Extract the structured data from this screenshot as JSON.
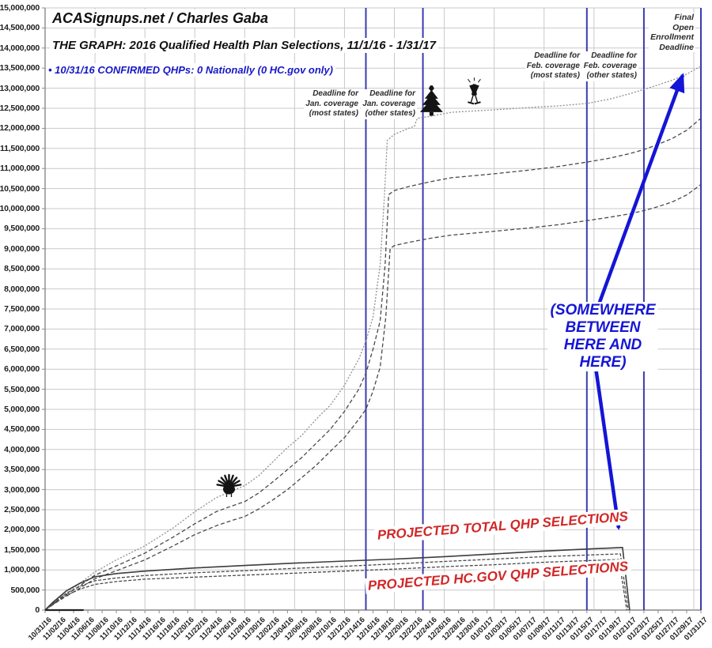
{
  "header": {
    "site": "ACASignups.net / Charles Gaba",
    "title": "THE GRAPH: 2016 Qualified Health Plan Selections, 11/1/16 - 1/31/17",
    "note": "• 10/31/16 CONFIRMED QHPs: 0 Nationally (0 HC.gov only)"
  },
  "annotations": {
    "deadline_jan_most": "Deadline for\nJan. coverage\n(most states)",
    "deadline_jan_other": "Deadline for\nJan. coverage\n(other states)",
    "deadline_feb_most": "Deadline for\nFeb. coverage\n(most states)",
    "deadline_feb_other": "Deadline for\nFeb. coverage\n(other states)",
    "final_deadline": "Final\nOpen\nEnrollment\nDeadline",
    "somewhere": "(SOMEWHERE BETWEEN\nHERE AND HERE)",
    "projected_total": "PROJECTED TOTAL QHP SELECTIONS",
    "projected_hcgov": "PROJECTED HC.GOV QHP SELECTIONS"
  },
  "colors": {
    "deadline_line_blue": "#3b3bb0",
    "annotation_blue": "#1515d6",
    "annotation_red": "#d22727",
    "grid_gray": "#c9c9c9",
    "axis_gray": "#8a8a8a",
    "curve_dark": "#4a4a4a",
    "curve_light": "#8f8f8f"
  },
  "icons": [
    {
      "name": "thanksgiving-turkey-icon",
      "day": 25.8,
      "value_m": 3.15
    },
    {
      "name": "christmas-tree-icon",
      "day": 54.2,
      "value_m": 12.62
    },
    {
      "name": "new-years-toast-icon",
      "day": 60.2,
      "value_m": 12.85
    }
  ],
  "chart_data": {
    "type": "line",
    "title": "THE GRAPH: 2016 Qualified Health Plan Selections, 11/1/16 - 1/31/17",
    "xlabel": "",
    "ylabel": "",
    "grid": true,
    "x_axis": {
      "start_date": "10/31/16",
      "end_date": "01/31/17",
      "days_span": 92,
      "tick_every_days": 2,
      "tick_labels": [
        "10/31/16",
        "11/02/16",
        "11/04/16",
        "11/06/16",
        "11/08/16",
        "11/10/16",
        "11/12/16",
        "11/14/16",
        "11/16/16",
        "11/18/16",
        "11/20/16",
        "11/22/16",
        "11/24/16",
        "11/26/16",
        "11/28/16",
        "11/30/16",
        "12/02/16",
        "12/04/16",
        "12/06/16",
        "12/08/16",
        "12/10/16",
        "12/12/16",
        "12/14/16",
        "12/16/16",
        "12/18/16",
        "12/20/16",
        "12/22/16",
        "12/24/16",
        "12/26/16",
        "12/28/16",
        "12/30/16",
        "01/01/17",
        "01/03/17",
        "01/05/17",
        "01/07/17",
        "01/09/17",
        "01/11/17",
        "01/13/17",
        "01/15/17",
        "01/17/17",
        "01/19/17",
        "01/21/17",
        "01/23/17",
        "01/25/17",
        "01/27/17",
        "01/29/17",
        "01/31/17"
      ],
      "weekly_gridline_days": [
        0,
        7,
        14,
        21,
        28,
        35,
        42,
        49,
        56,
        63,
        70,
        77,
        84,
        91
      ]
    },
    "y_axis": {
      "min": 0,
      "max": 15000000,
      "step": 500000,
      "tick_labels": [
        "0",
        "500,000",
        "1,000,000",
        "1,500,000",
        "2,000,000",
        "2,500,000",
        "3,000,000",
        "3,500,000",
        "4,000,000",
        "4,500,000",
        "5,000,000",
        "5,500,000",
        "6,000,000",
        "6,500,000",
        "7,000,000",
        "7,500,000",
        "8,000,000",
        "8,500,000",
        "9,000,000",
        "9,500,000",
        "10,000,000",
        "10,500,000",
        "11,000,000",
        "11,500,000",
        "12,000,000",
        "12,500,000",
        "13,000,000",
        "13,500,000",
        "14,000,000",
        "14,500,000",
        "15,000,000"
      ]
    },
    "deadlines": [
      {
        "day": 45,
        "date": "12/15/16",
        "label_key": "deadline_jan_most"
      },
      {
        "day": 53,
        "date": "12/23/16",
        "label_key": "deadline_jan_other"
      },
      {
        "day": 76,
        "date": "01/15/17",
        "label_key": "deadline_feb_most"
      },
      {
        "day": 84,
        "date": "01/23/17",
        "label_key": "deadline_feb_other"
      },
      {
        "day": 92,
        "date": "01/31/17",
        "label_key": "final_deadline"
      }
    ],
    "units": "millions of QHP selections, points are [day_since_10_31_16, value_in_millions]",
    "series": [
      {
        "name": "projection_high",
        "points": [
          [
            0,
            0
          ],
          [
            2,
            0.3
          ],
          [
            4,
            0.55
          ],
          [
            7,
            0.95
          ],
          [
            10,
            1.25
          ],
          [
            14,
            1.6
          ],
          [
            18,
            2.05
          ],
          [
            21,
            2.45
          ],
          [
            24,
            2.8
          ],
          [
            26,
            2.95
          ],
          [
            28,
            3.1
          ],
          [
            30,
            3.35
          ],
          [
            32,
            3.7
          ],
          [
            34,
            4.05
          ],
          [
            36,
            4.35
          ],
          [
            38,
            4.75
          ],
          [
            40,
            5.1
          ],
          [
            42,
            5.6
          ],
          [
            44,
            6.25
          ],
          [
            45,
            6.7
          ],
          [
            46,
            7.3
          ],
          [
            47,
            8.6
          ],
          [
            47.6,
            10.3
          ],
          [
            48,
            11.7
          ],
          [
            49,
            11.85
          ],
          [
            51,
            12.0
          ],
          [
            51.8,
            12.05
          ],
          [
            52.2,
            12.25
          ],
          [
            54,
            12.3
          ],
          [
            57,
            12.4
          ],
          [
            62,
            12.45
          ],
          [
            68,
            12.52
          ],
          [
            72,
            12.56
          ],
          [
            76,
            12.62
          ],
          [
            79,
            12.72
          ],
          [
            82,
            12.86
          ],
          [
            84,
            12.97
          ],
          [
            86,
            13.08
          ],
          [
            88,
            13.2
          ],
          [
            90,
            13.35
          ],
          [
            92,
            13.55
          ]
        ]
      },
      {
        "name": "projection_standard",
        "points": [
          [
            0,
            0
          ],
          [
            2,
            0.27
          ],
          [
            4,
            0.5
          ],
          [
            7,
            0.87
          ],
          [
            10,
            1.1
          ],
          [
            14,
            1.42
          ],
          [
            18,
            1.82
          ],
          [
            21,
            2.15
          ],
          [
            24,
            2.45
          ],
          [
            26,
            2.58
          ],
          [
            28,
            2.7
          ],
          [
            30,
            2.92
          ],
          [
            32,
            3.2
          ],
          [
            34,
            3.5
          ],
          [
            36,
            3.8
          ],
          [
            38,
            4.15
          ],
          [
            40,
            4.5
          ],
          [
            42,
            4.95
          ],
          [
            44,
            5.5
          ],
          [
            45,
            5.9
          ],
          [
            46,
            6.5
          ],
          [
            47,
            7.2
          ],
          [
            47.7,
            8.6
          ],
          [
            48.2,
            10.35
          ],
          [
            49,
            10.45
          ],
          [
            51,
            10.55
          ],
          [
            54,
            10.67
          ],
          [
            57,
            10.77
          ],
          [
            62,
            10.85
          ],
          [
            68,
            10.96
          ],
          [
            72,
            11.05
          ],
          [
            76,
            11.16
          ],
          [
            79,
            11.25
          ],
          [
            82,
            11.37
          ],
          [
            84,
            11.47
          ],
          [
            86,
            11.6
          ],
          [
            88,
            11.75
          ],
          [
            90,
            11.95
          ],
          [
            92,
            12.25
          ]
        ]
      },
      {
        "name": "projection_low",
        "points": [
          [
            0,
            0
          ],
          [
            2,
            0.24
          ],
          [
            4,
            0.45
          ],
          [
            7,
            0.78
          ],
          [
            10,
            0.98
          ],
          [
            14,
            1.25
          ],
          [
            18,
            1.6
          ],
          [
            21,
            1.88
          ],
          [
            24,
            2.1
          ],
          [
            26,
            2.22
          ],
          [
            28,
            2.33
          ],
          [
            30,
            2.52
          ],
          [
            32,
            2.75
          ],
          [
            34,
            3.0
          ],
          [
            36,
            3.3
          ],
          [
            38,
            3.6
          ],
          [
            40,
            3.95
          ],
          [
            42,
            4.3
          ],
          [
            44,
            4.75
          ],
          [
            45,
            5.0
          ],
          [
            46,
            5.45
          ],
          [
            47,
            6.05
          ],
          [
            47.8,
            7.3
          ],
          [
            48.4,
            9.0
          ],
          [
            49,
            9.08
          ],
          [
            51,
            9.16
          ],
          [
            54,
            9.26
          ],
          [
            57,
            9.34
          ],
          [
            62,
            9.42
          ],
          [
            68,
            9.52
          ],
          [
            72,
            9.6
          ],
          [
            76,
            9.7
          ],
          [
            79,
            9.78
          ],
          [
            82,
            9.87
          ],
          [
            84,
            9.95
          ],
          [
            86,
            10.05
          ],
          [
            88,
            10.17
          ],
          [
            90,
            10.34
          ],
          [
            92,
            10.6
          ]
        ]
      },
      {
        "name": "projected_total_qhp",
        "points": [
          [
            0,
            0
          ],
          [
            1,
            0.18
          ],
          [
            3,
            0.48
          ],
          [
            5,
            0.68
          ],
          [
            7,
            0.83
          ],
          [
            10,
            0.91
          ],
          [
            14,
            0.97
          ],
          [
            21,
            1.05
          ],
          [
            28,
            1.11
          ],
          [
            35,
            1.17
          ],
          [
            42,
            1.22
          ],
          [
            49,
            1.27
          ],
          [
            56,
            1.33
          ],
          [
            63,
            1.4
          ],
          [
            70,
            1.47
          ],
          [
            76,
            1.52
          ],
          [
            81,
            1.56
          ],
          [
            82,
            0
          ]
        ]
      },
      {
        "name": "projected_hcgov_high",
        "points": [
          [
            0,
            0
          ],
          [
            1,
            0.15
          ],
          [
            3,
            0.42
          ],
          [
            5,
            0.6
          ],
          [
            7,
            0.73
          ],
          [
            10,
            0.8
          ],
          [
            14,
            0.86
          ],
          [
            21,
            0.93
          ],
          [
            28,
            0.98
          ],
          [
            35,
            1.04
          ],
          [
            42,
            1.09
          ],
          [
            49,
            1.15
          ],
          [
            56,
            1.21
          ],
          [
            63,
            1.27
          ],
          [
            70,
            1.33
          ],
          [
            76,
            1.37
          ],
          [
            80.7,
            1.4
          ],
          [
            81.8,
            0
          ]
        ]
      },
      {
        "name": "projected_hcgov_low",
        "points": [
          [
            0,
            0
          ],
          [
            1,
            0.13
          ],
          [
            3,
            0.37
          ],
          [
            5,
            0.53
          ],
          [
            7,
            0.64
          ],
          [
            10,
            0.71
          ],
          [
            14,
            0.77
          ],
          [
            21,
            0.82
          ],
          [
            28,
            0.87
          ],
          [
            35,
            0.92
          ],
          [
            42,
            0.97
          ],
          [
            49,
            1.02
          ],
          [
            56,
            1.08
          ],
          [
            63,
            1.13
          ],
          [
            70,
            1.19
          ],
          [
            76,
            1.23
          ],
          [
            80.5,
            1.26
          ],
          [
            81.6,
            0
          ]
        ]
      },
      {
        "name": "confirmed_qhp",
        "points": [
          [
            0,
            0
          ],
          [
            5.4,
            0
          ]
        ]
      }
    ]
  }
}
